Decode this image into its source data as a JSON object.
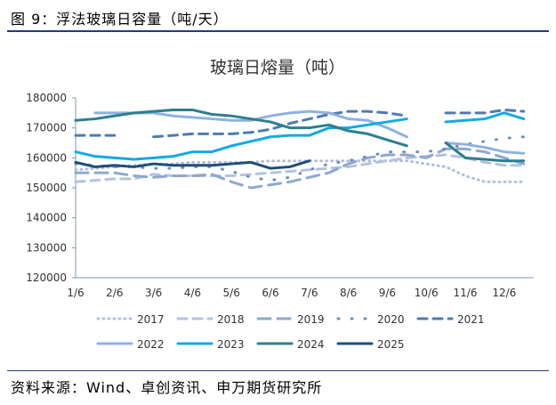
{
  "figure_title": "图 9：浮法玻璃日容量（吨/天）",
  "source": "资料来源：Wind、卓创资讯、申万期货研究所",
  "chart_data": {
    "type": "line",
    "title": "玻璃日熔量（吨）",
    "xlabel": "",
    "ylabel": "",
    "ylim": [
      120000,
      180000
    ],
    "yticks": [
      120000,
      130000,
      140000,
      150000,
      160000,
      170000,
      180000
    ],
    "xtick_labels": [
      "1/6",
      "2/6",
      "3/6",
      "4/6",
      "5/6",
      "6/6",
      "7/6",
      "8/6",
      "9/6",
      "10/6",
      "11/6",
      "12/6"
    ],
    "x": [
      "1/6",
      "1/21",
      "2/6",
      "2/21",
      "3/6",
      "3/21",
      "4/6",
      "4/21",
      "5/6",
      "5/21",
      "6/6",
      "6/21",
      "7/6",
      "7/21",
      "8/6",
      "8/21",
      "9/6",
      "9/21",
      "10/6",
      "10/21",
      "11/6",
      "11/21",
      "12/6",
      "12/21"
    ],
    "legend_position": "bottom",
    "grid": false,
    "series": [
      {
        "name": "2017",
        "color": "#b4bfd8",
        "style": "dotted",
        "values": [
          156000,
          156500,
          157000,
          157500,
          158000,
          158000,
          158500,
          158500,
          158500,
          158500,
          159000,
          159000,
          159000,
          159000,
          159000,
          159000,
          159000,
          159000,
          158000,
          157000,
          154000,
          152000,
          152000,
          152000
        ]
      },
      {
        "name": "2018",
        "color": "#b4c3de",
        "style": "dash",
        "values": [
          152000,
          152500,
          153000,
          153000,
          154500,
          154000,
          154000,
          154000,
          154000,
          154500,
          155000,
          155500,
          156000,
          156500,
          157000,
          158000,
          159000,
          160000,
          160500,
          161000,
          160000,
          158500,
          157500,
          157500
        ]
      },
      {
        "name": "2019",
        "color": "#8ea7cf",
        "style": "longdash",
        "values": [
          155000,
          155000,
          155000,
          154000,
          153500,
          154000,
          154000,
          154500,
          152000,
          150000,
          151000,
          152000,
          153500,
          155000,
          158000,
          160000,
          161000,
          161000,
          160000,
          163000,
          163000,
          162000,
          160000,
          158000
        ]
      },
      {
        "name": "2020",
        "color": "#6d8fbf",
        "style": "dashdot",
        "values": [
          158000,
          157500,
          157000,
          157000,
          156500,
          156500,
          157000,
          157000,
          155500,
          153500,
          152500,
          153500,
          156000,
          158000,
          159000,
          160500,
          162000,
          162000,
          162000,
          163000,
          164500,
          165500,
          166500,
          167000
        ]
      },
      {
        "name": "2021",
        "color": "#4f7ab5",
        "style": "dash",
        "values": [
          167500,
          167500,
          167500,
          null,
          167000,
          167500,
          168000,
          168000,
          168000,
          168500,
          169500,
          171500,
          173000,
          174500,
          175500,
          175500,
          175000,
          174000,
          null,
          175000,
          175000,
          175000,
          176000,
          175500
        ]
      },
      {
        "name": "2022",
        "color": "#8db2e0",
        "style": "solid",
        "values": [
          null,
          175000,
          175000,
          175000,
          175000,
          174000,
          173500,
          173000,
          172500,
          172500,
          174000,
          175000,
          175500,
          175000,
          173000,
          172500,
          170000,
          167000,
          null,
          165000,
          164500,
          163500,
          162000,
          161500
        ]
      },
      {
        "name": "2023",
        "color": "#13a9e6",
        "style": "solid",
        "values": [
          162000,
          160500,
          160000,
          159500,
          160000,
          160500,
          162000,
          162000,
          164000,
          165500,
          167000,
          167500,
          167500,
          170000,
          170000,
          171000,
          172000,
          173000,
          null,
          172000,
          172500,
          173000,
          175000,
          173000
        ]
      },
      {
        "name": "2024",
        "color": "#2c7f8f",
        "style": "solid",
        "values": [
          172500,
          173000,
          174000,
          175000,
          175500,
          176000,
          176000,
          174500,
          174000,
          173000,
          172000,
          170000,
          170000,
          171000,
          169000,
          168000,
          166000,
          164000,
          null,
          165000,
          160000,
          159500,
          159000,
          159000
        ]
      },
      {
        "name": "2025",
        "color": "#1f4e79",
        "style": "solid",
        "values": [
          158500,
          157000,
          157500,
          157000,
          158000,
          157500,
          157500,
          157500,
          158000,
          158500,
          156500,
          157000,
          159000,
          null,
          null,
          null,
          null,
          null,
          null,
          null,
          null,
          null,
          null,
          null
        ]
      }
    ]
  }
}
